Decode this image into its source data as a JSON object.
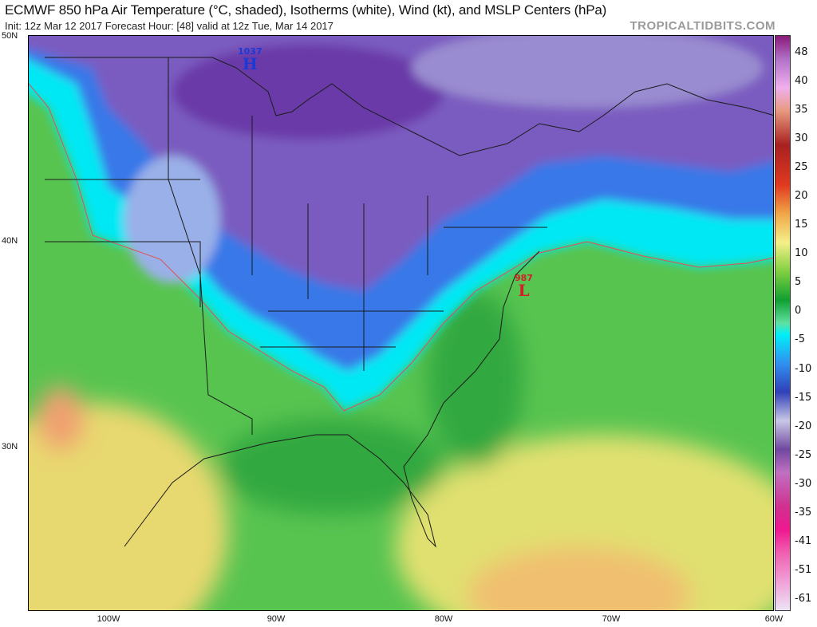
{
  "header": {
    "title": "ECMWF 850 hPa Air Temperature (°C, shaded), Isotherms (white), Wind (kt), and MSLP Centers (hPa)",
    "subtitle": "Init: 12z Mar 12 2017   Forecast Hour: [48]   valid at 12z Tue, Mar 14 2017",
    "brand": "TROPICALTIDBITS.COM"
  },
  "colorbar": {
    "labels": [
      "48",
      "40",
      "35",
      "30",
      "25",
      "20",
      "15",
      "10",
      "5",
      "0",
      "-5",
      "-10",
      "-15",
      "-20",
      "-25",
      "-30",
      "-35",
      "-41",
      "-51",
      "-61"
    ]
  },
  "axes": {
    "lat_labels": [
      "50N",
      "40N",
      "30N"
    ],
    "lon_labels": [
      "100W",
      "90W",
      "80W",
      "70W",
      "60W"
    ]
  },
  "pressure_centers": [
    {
      "value": "1037",
      "symbol": "H",
      "color": "#1a3ad8"
    },
    {
      "value": "987",
      "symbol": "L",
      "color": "#d0202a"
    }
  ]
}
